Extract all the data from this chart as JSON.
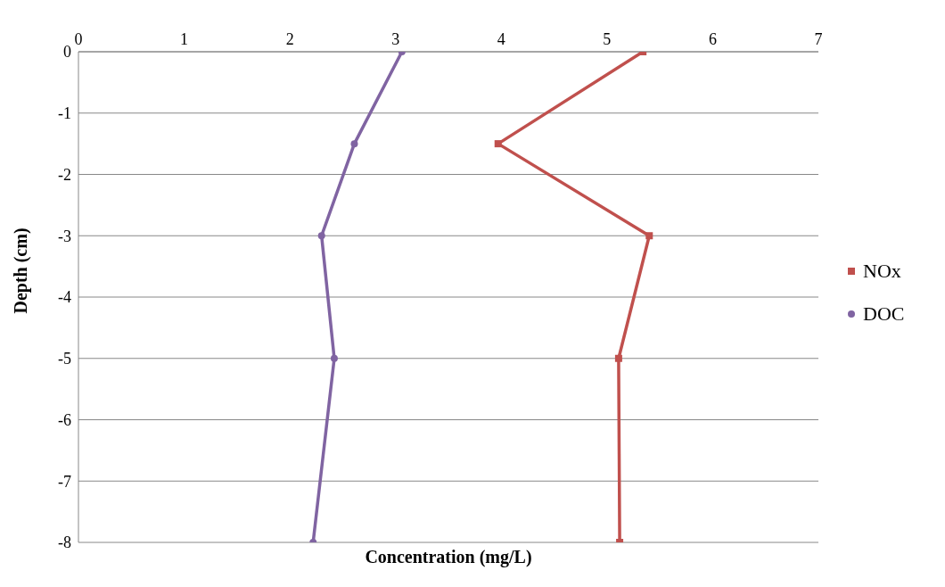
{
  "chart_data": {
    "type": "line",
    "xlabel": "Concentration (mg/L)",
    "ylabel": "Depth (cm)",
    "xlim": [
      0,
      7
    ],
    "xticks": [
      0,
      1,
      2,
      3,
      4,
      5,
      6,
      7
    ],
    "ylim": [
      -8,
      0
    ],
    "yticks": [
      -8,
      -7,
      -6,
      -5,
      -4,
      -3,
      -2,
      -1,
      0
    ],
    "grid": "y",
    "legend": "right",
    "series": [
      {
        "name": "NOx",
        "color": "#c0504d",
        "marker": "square",
        "x": [
          5.34,
          3.97,
          5.4,
          5.11,
          5.12
        ],
        "values": [
          0,
          -1.5,
          -3,
          -5,
          -8
        ]
      },
      {
        "name": "DOC",
        "color": "#8064a2",
        "marker": "circle",
        "x": [
          3.06,
          2.61,
          2.3,
          2.42,
          2.22
        ],
        "values": [
          0,
          -1.5,
          -3,
          -5,
          -8
        ]
      }
    ]
  }
}
